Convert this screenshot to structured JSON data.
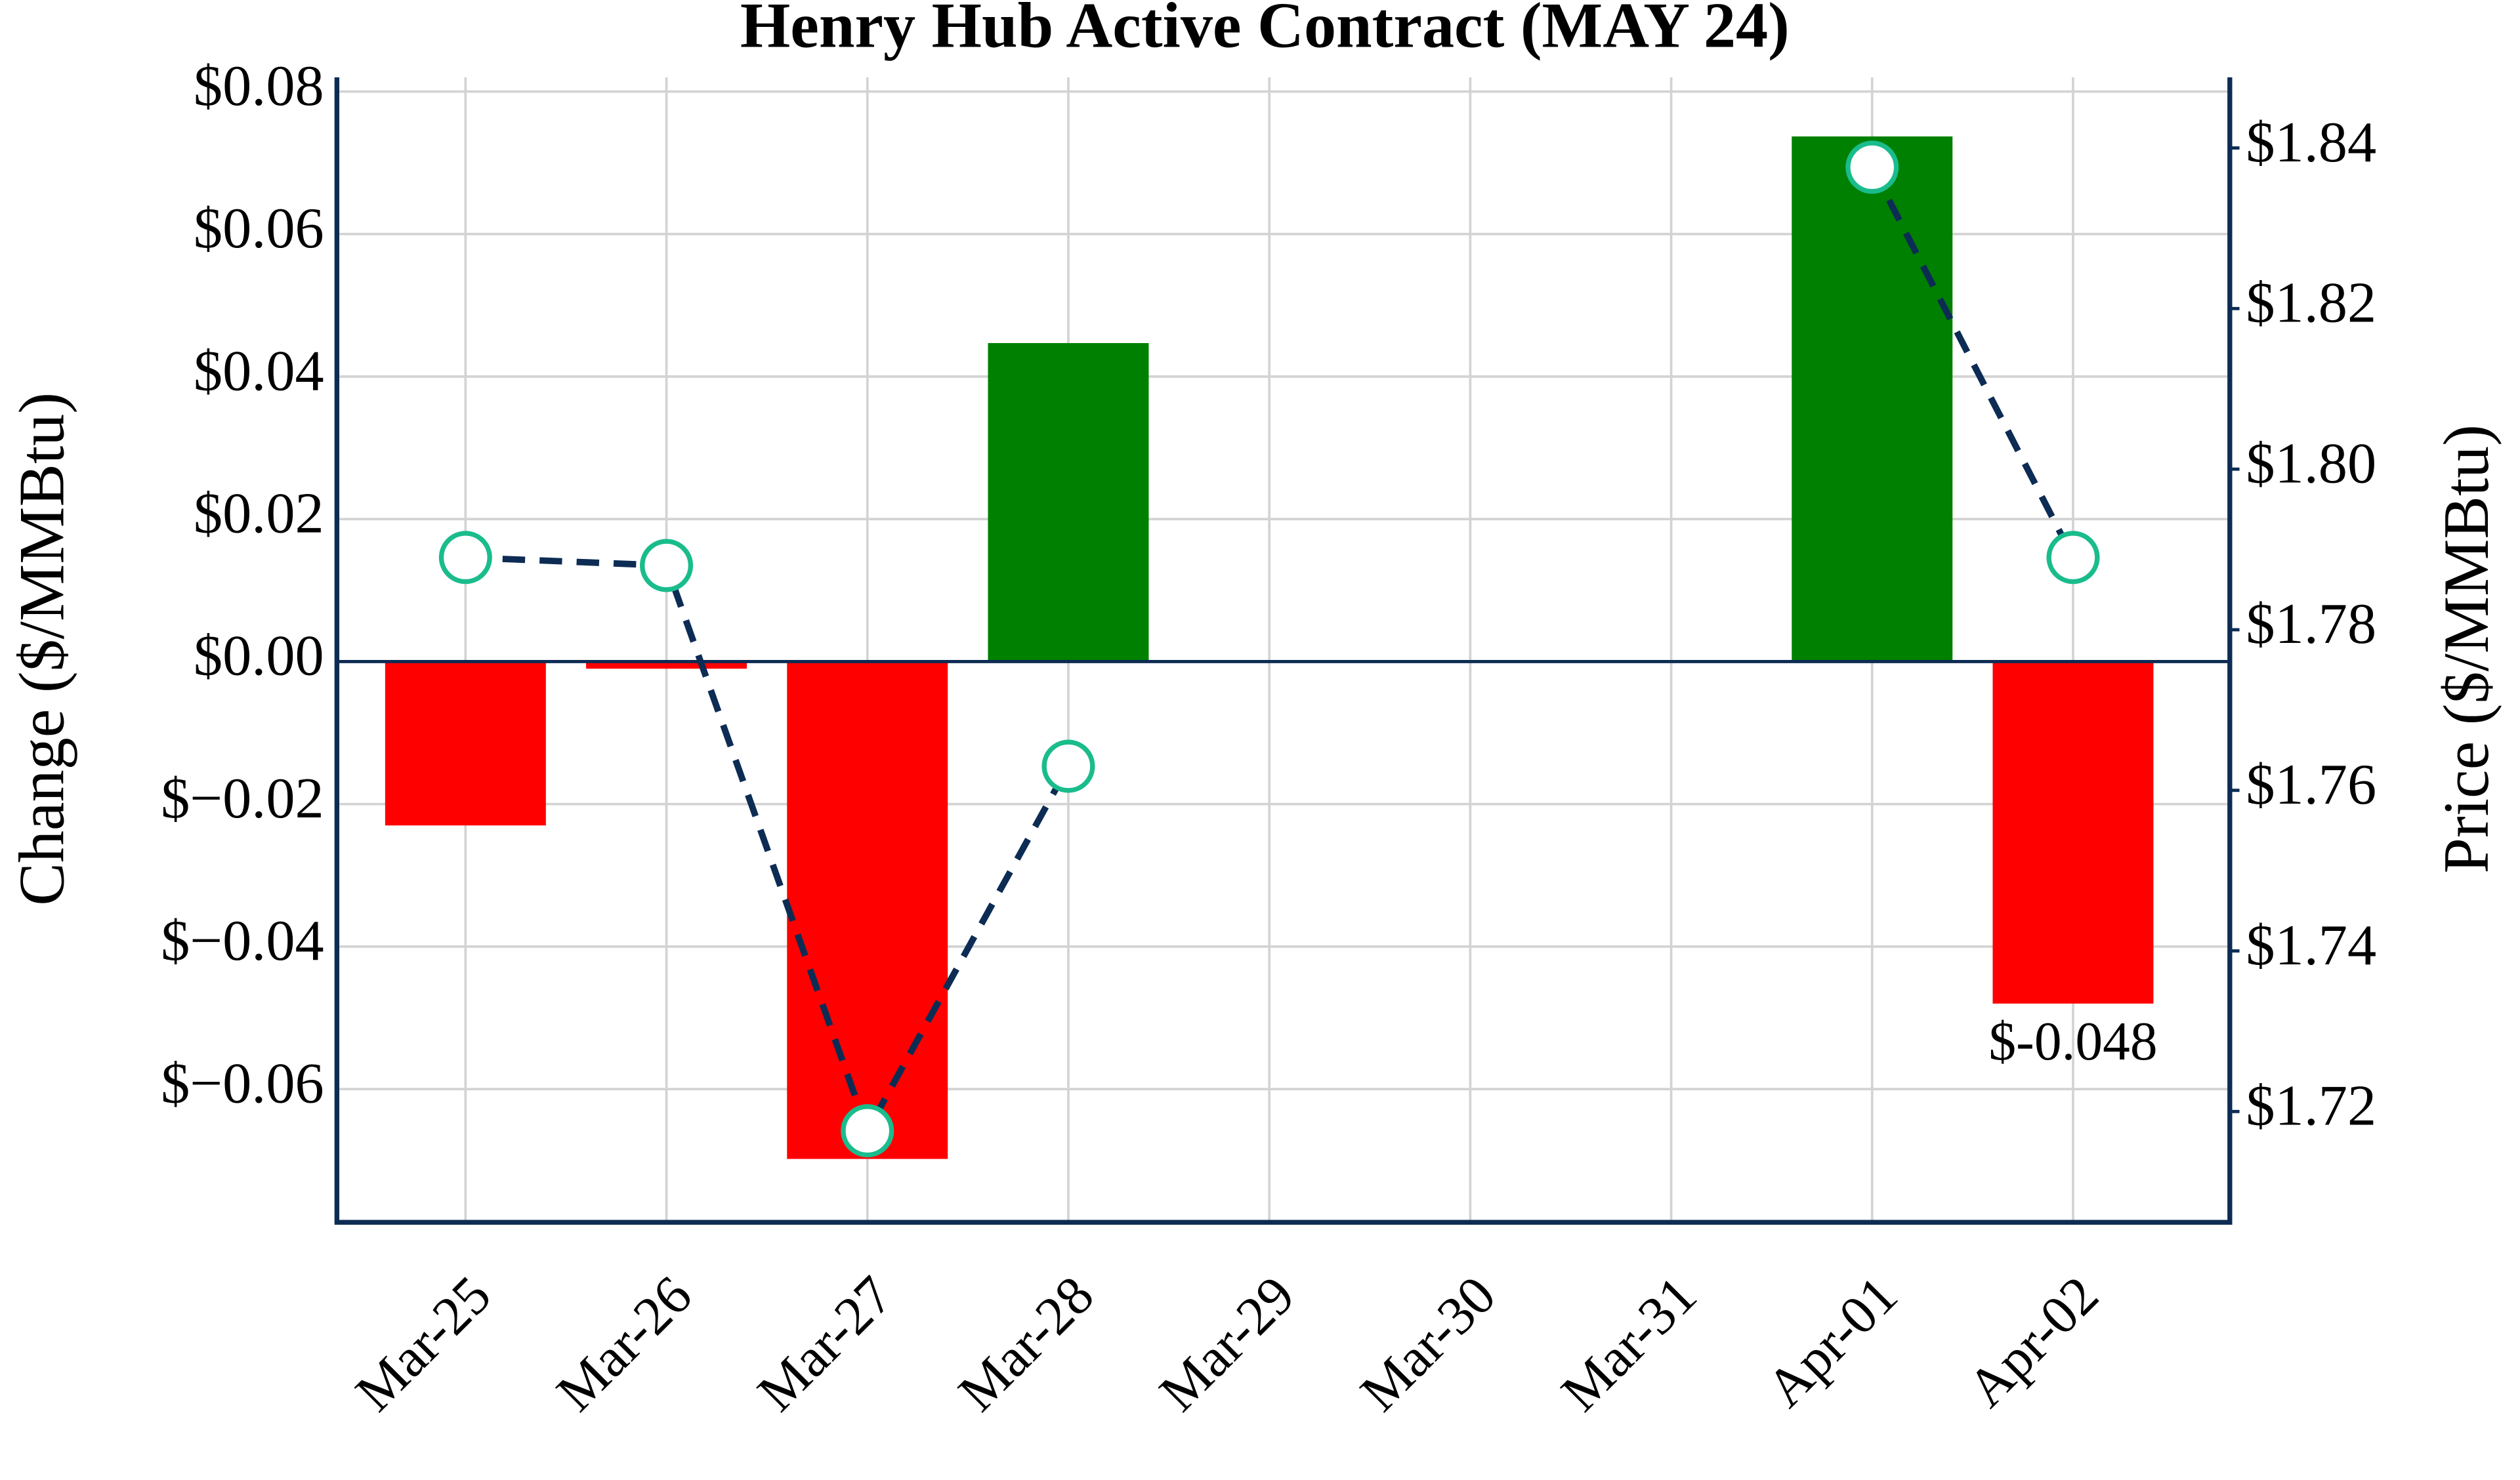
{
  "chart_data": {
    "type": "bar-line",
    "title": "Henry Hub Active Contract (MAY 24)",
    "categories": [
      "Mar-25",
      "Mar-26",
      "Mar-27",
      "Mar-28",
      "Mar-29",
      "Mar-30",
      "Mar-31",
      "Apr-01",
      "Apr-02"
    ],
    "series": [
      {
        "name": "Change",
        "type": "bar",
        "positive_color": "#008000",
        "negative_color": "#ff0000",
        "values": [
          -0.023,
          -0.001,
          -0.0698,
          0.0447,
          null,
          null,
          null,
          0.0737,
          -0.048
        ],
        "value_labels": [
          null,
          null,
          null,
          null,
          null,
          null,
          null,
          null,
          "$-0.048"
        ]
      },
      {
        "name": "Price",
        "type": "line",
        "axis": "y2",
        "color": "#0d2c54",
        "marker_color": "#1abc8c",
        "dash": true,
        "values": [
          1.789,
          1.788,
          1.7176,
          1.763,
          null,
          null,
          null,
          1.8376,
          1.789
        ]
      }
    ],
    "ylabel": "Change ($/MMBtu)",
    "y2label": "Price ($/MMBtu)",
    "ylim": [
      -0.0787,
      0.082
    ],
    "yticks": [
      {
        "value": -0.06,
        "label": "$−0.06"
      },
      {
        "value": -0.04,
        "label": "$−0.04"
      },
      {
        "value": -0.02,
        "label": "$−0.02"
      },
      {
        "value": 0,
        "label": "$0.00"
      },
      {
        "value": 0.02,
        "label": "$0.02"
      },
      {
        "value": 0.04,
        "label": "$0.04"
      },
      {
        "value": 0.06,
        "label": "$0.06"
      },
      {
        "value": 0.08,
        "label": "$0.08"
      }
    ],
    "y2lim": [
      1.7062,
      1.8488
    ],
    "y2ticks": [
      {
        "value": 1.72,
        "label": "$1.72"
      },
      {
        "value": 1.74,
        "label": "$1.74"
      },
      {
        "value": 1.76,
        "label": "$1.76"
      },
      {
        "value": 1.78,
        "label": "$1.78"
      },
      {
        "value": 1.8,
        "label": "$1.80"
      },
      {
        "value": 1.82,
        "label": "$1.82"
      },
      {
        "value": 1.84,
        "label": "$1.84"
      }
    ],
    "grid": true
  }
}
